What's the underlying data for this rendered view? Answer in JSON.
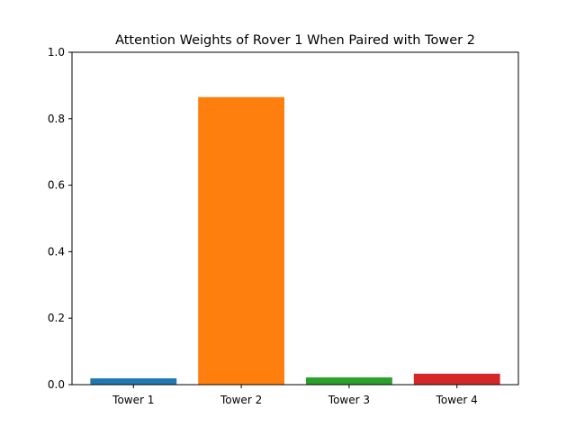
{
  "chart_data": {
    "type": "bar",
    "title": "Attention Weights of Rover 1 When Paired with Tower 2",
    "categories": [
      "Tower 1",
      "Tower 2",
      "Tower 3",
      "Tower 4"
    ],
    "values": [
      0.019,
      0.865,
      0.022,
      0.033
    ],
    "colors": [
      "#1f77b4",
      "#ff7f0e",
      "#2ca02c",
      "#d62728"
    ],
    "ylim": [
      0,
      1.0
    ],
    "yticks": [
      "0.0",
      "0.2",
      "0.4",
      "0.6",
      "0.8",
      "1.0"
    ],
    "ytick_values": [
      0,
      0.2,
      0.4,
      0.6,
      0.8,
      1.0
    ],
    "grid": false,
    "legend": "none"
  }
}
